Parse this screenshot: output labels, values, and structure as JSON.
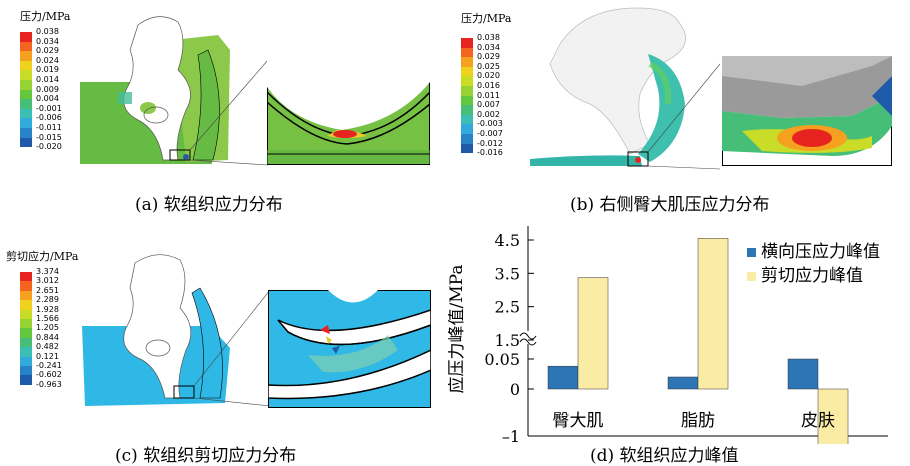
{
  "panels": {
    "a": {
      "caption": "(a) 软组织应力分布",
      "colorbar": {
        "title": "压力/MPa",
        "labels": [
          "0.038",
          "0.034",
          "0.029",
          "0.024",
          "0.019",
          "0.014",
          "0.009",
          "0.004",
          "-0.001",
          "-0.006",
          "-0.011",
          "-0.015",
          "-0.020"
        ],
        "colors": [
          "#e6231e",
          "#f5641e",
          "#f5a01e",
          "#f0d21e",
          "#c8dc28",
          "#96d232",
          "#64c83c",
          "#46be78",
          "#3cbeb4",
          "#32aadc",
          "#2882c8",
          "#1e5aa8"
        ]
      }
    },
    "b": {
      "caption": "(b) 右侧臀大肌压应力分布",
      "colorbar": {
        "title": "压力/MPa",
        "labels": [
          "0.038",
          "0.034",
          "0.029",
          "0.025",
          "0.020",
          "0.016",
          "0.011",
          "0.007",
          "0.002",
          "-0.003",
          "-0.007",
          "-0.012",
          "-0.016"
        ],
        "colors": [
          "#e6231e",
          "#f5641e",
          "#f5a01e",
          "#f0d21e",
          "#c8dc28",
          "#96d232",
          "#64c83c",
          "#46be78",
          "#3cbeb4",
          "#32aadc",
          "#2882c8",
          "#1e5aa8"
        ]
      }
    },
    "c": {
      "caption": "(c) 软组织剪切应力分布",
      "colorbar": {
        "title": "剪切应力/MPa",
        "labels": [
          "3.374",
          "3.012",
          "2.651",
          "2.289",
          "1.928",
          "1.566",
          "1.205",
          "0.844",
          "0.482",
          "0.121",
          "-0.241",
          "-0.602",
          "-0.963"
        ],
        "colors": [
          "#e6231e",
          "#f5641e",
          "#f5a01e",
          "#f0d21e",
          "#c8dc28",
          "#96d232",
          "#64c83c",
          "#46be78",
          "#3cbeb4",
          "#32aadc",
          "#2882c8",
          "#1e5aa8"
        ]
      }
    },
    "d": {
      "caption": "(d) 软组织应力峰值"
    }
  },
  "colors": {
    "series_blue": "#2e75b6",
    "series_yellow": "#fbeca5",
    "tissue_green": "#7cc243",
    "tissue_cyan": "#2fb8e6"
  },
  "chart_data": {
    "type": "bar",
    "categories": [
      "臀大肌",
      "脂肪",
      "皮肤"
    ],
    "series": [
      {
        "name": "横向压应力峰值",
        "values": [
          0.038,
          0.02,
          1.4
        ]
      },
      {
        "name": "剪切应力峰值",
        "values": [
          3.374,
          4.55,
          -1.2
        ]
      }
    ],
    "ylabel": "应压力峰值/MPa",
    "xlabel": "",
    "y_ticks_upper": [
      "4.5",
      "3.5",
      "2.5",
      "1.5"
    ],
    "y_ticks_lower": [
      "0.05",
      "0",
      "–1"
    ],
    "axis_break": true,
    "legend_position": "top-right",
    "grid": false
  }
}
